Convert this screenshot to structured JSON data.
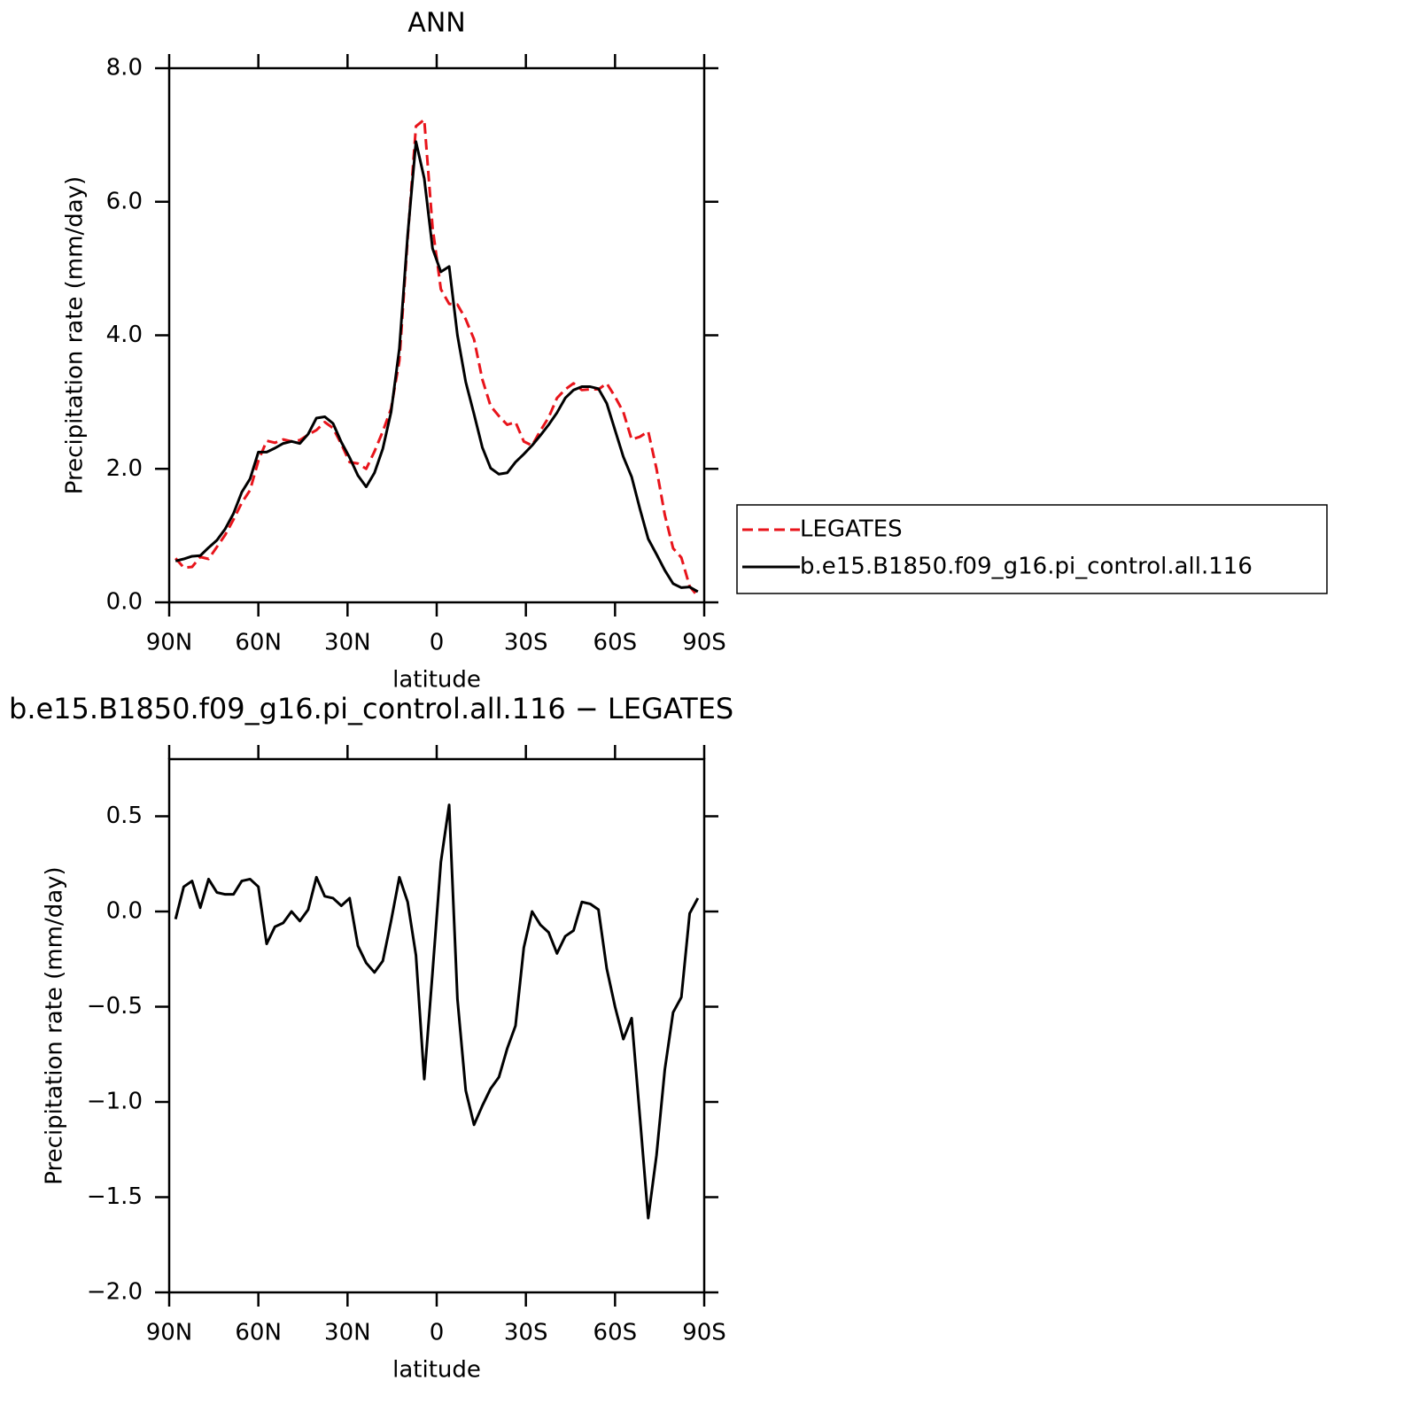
{
  "chart_data": [
    {
      "type": "line",
      "title": "ANN",
      "x_label": "latitude",
      "y_label": "Precipitation rate (mm/day)",
      "x": [
        87.86,
        85.1,
        82.31,
        79.53,
        76.74,
        73.95,
        71.16,
        68.37,
        65.58,
        62.79,
        60.0,
        57.21,
        54.42,
        51.63,
        48.84,
        46.04,
        43.25,
        40.46,
        37.67,
        34.88,
        32.09,
        29.3,
        26.51,
        23.72,
        20.93,
        18.14,
        15.35,
        12.56,
        9.77,
        6.98,
        4.19,
        1.4,
        -1.4,
        -4.19,
        -6.98,
        -9.77,
        -12.56,
        -15.35,
        -18.14,
        -20.93,
        -23.72,
        -26.51,
        -29.3,
        -32.09,
        -34.88,
        -37.67,
        -40.46,
        -43.25,
        -46.04,
        -48.84,
        -51.63,
        -54.42,
        -57.21,
        -60.0,
        -62.79,
        -65.58,
        -68.37,
        -71.16,
        -73.95,
        -76.74,
        -79.53,
        -82.31,
        -85.1,
        -87.86
      ],
      "series": [
        {
          "name": "LEGATES",
          "color": "#e8141b",
          "line_style": "dashed",
          "values": [
            0.66,
            0.52,
            0.53,
            0.68,
            0.65,
            0.83,
            1.01,
            1.24,
            1.49,
            1.68,
            2.12,
            2.42,
            2.39,
            2.44,
            2.41,
            2.43,
            2.51,
            2.58,
            2.7,
            2.61,
            2.37,
            2.1,
            2.08,
            2.0,
            2.26,
            2.56,
            2.9,
            3.62,
            5.45,
            7.13,
            7.23,
            5.62,
            4.69,
            4.47,
            4.46,
            4.24,
            3.94,
            3.34,
            2.94,
            2.79,
            2.66,
            2.7,
            2.41,
            2.35,
            2.57,
            2.77,
            3.06,
            3.19,
            3.28,
            3.18,
            3.19,
            3.19,
            3.28,
            3.08,
            2.85,
            2.44,
            2.48,
            2.56,
            2.0,
            1.31,
            0.81,
            0.67,
            0.24,
            0.09
          ]
        },
        {
          "name": "b.e15.B1850.f09_g16.pi_control.all.116",
          "color": "#000000",
          "line_style": "solid",
          "values": [
            0.62,
            0.65,
            0.69,
            0.7,
            0.82,
            0.93,
            1.1,
            1.33,
            1.65,
            1.85,
            2.25,
            2.25,
            2.31,
            2.38,
            2.41,
            2.38,
            2.52,
            2.76,
            2.78,
            2.68,
            2.4,
            2.17,
            1.9,
            1.73,
            1.94,
            2.3,
            2.85,
            3.8,
            5.5,
            6.9,
            6.35,
            5.3,
            4.95,
            5.03,
            4.0,
            3.3,
            2.82,
            2.32,
            2.01,
            1.92,
            1.94,
            2.1,
            2.22,
            2.35,
            2.5,
            2.66,
            2.84,
            3.06,
            3.18,
            3.23,
            3.23,
            3.2,
            2.98,
            2.58,
            2.18,
            1.88,
            1.4,
            0.95,
            0.72,
            0.48,
            0.28,
            0.22,
            0.23,
            0.16
          ]
        }
      ],
      "xlim": [
        90,
        -90
      ],
      "xticks": [
        {
          "value": 90,
          "label": "90N"
        },
        {
          "value": 60,
          "label": "60N"
        },
        {
          "value": 30,
          "label": "30N"
        },
        0,
        {
          "value": -30,
          "label": "30S"
        },
        {
          "value": -60,
          "label": "60S"
        },
        {
          "value": -90,
          "label": "90S"
        }
      ],
      "ylim": [
        0,
        8
      ],
      "yticks": [
        {
          "value": 0,
          "label": "0.0"
        },
        {
          "value": 2,
          "label": "2.0"
        },
        {
          "value": 4,
          "label": "4.0"
        },
        {
          "value": 6,
          "label": "6.0"
        },
        {
          "value": 8,
          "label": "8.0"
        }
      ],
      "legend": "right"
    },
    {
      "type": "line",
      "title": "b.e15.B1850.f09_g16.pi_control.all.116 − LEGATES",
      "x_label": "latitude",
      "y_label": "Precipitation rate (mm/day)",
      "x": [
        87.86,
        85.1,
        82.31,
        79.53,
        76.74,
        73.95,
        71.16,
        68.37,
        65.58,
        62.79,
        60.0,
        57.21,
        54.42,
        51.63,
        48.84,
        46.04,
        43.25,
        40.46,
        37.67,
        34.88,
        32.09,
        29.3,
        26.51,
        23.72,
        20.93,
        18.14,
        15.35,
        12.56,
        9.77,
        6.98,
        4.19,
        1.4,
        -1.4,
        -4.19,
        -6.98,
        -9.77,
        -12.56,
        -15.35,
        -18.14,
        -20.93,
        -23.72,
        -26.51,
        -29.3,
        -32.09,
        -34.88,
        -37.67,
        -40.46,
        -43.25,
        -46.04,
        -48.84,
        -51.63,
        -54.42,
        -57.21,
        -60.0,
        -62.79,
        -65.58,
        -68.37,
        -71.16,
        -73.95,
        -76.74,
        -79.53,
        -82.31,
        -85.1,
        -87.86
      ],
      "series": [
        {
          "color": "#000000",
          "line_style": "solid",
          "values": [
            -0.04,
            0.13,
            0.16,
            0.02,
            0.17,
            0.1,
            0.09,
            0.09,
            0.16,
            0.17,
            0.13,
            -0.17,
            -0.08,
            -0.06,
            0.0,
            -0.05,
            0.01,
            0.18,
            0.08,
            0.07,
            0.03,
            0.07,
            -0.18,
            -0.27,
            -0.32,
            -0.26,
            -0.05,
            0.18,
            0.05,
            -0.23,
            -0.88,
            -0.32,
            0.26,
            0.56,
            -0.46,
            -0.94,
            -1.12,
            -1.02,
            -0.93,
            -0.87,
            -0.72,
            -0.6,
            -0.19,
            0.0,
            -0.07,
            -0.11,
            -0.22,
            -0.13,
            -0.1,
            0.05,
            0.04,
            0.01,
            -0.3,
            -0.5,
            -0.67,
            -0.56,
            -1.08,
            -1.61,
            -1.28,
            -0.83,
            -0.53,
            -0.45,
            -0.01,
            0.07
          ]
        }
      ],
      "xlim": [
        90,
        -90
      ],
      "xticks": [
        {
          "value": 90,
          "label": "90N"
        },
        {
          "value": 60,
          "label": "60N"
        },
        {
          "value": 30,
          "label": "30N"
        },
        0,
        {
          "value": -30,
          "label": "30S"
        },
        {
          "value": -60,
          "label": "60S"
        },
        {
          "value": -90,
          "label": "90S"
        }
      ],
      "ylim": [
        -2.0,
        0.8
      ],
      "yticks": [
        {
          "value": -2,
          "label": "−2.0"
        },
        {
          "value": -1.5,
          "label": "−1.5"
        },
        {
          "value": -1,
          "label": "−1.0"
        },
        {
          "value": -0.5,
          "label": "−0.5"
        },
        {
          "value": 0,
          "label": "0.0"
        },
        0.5
      ]
    }
  ]
}
